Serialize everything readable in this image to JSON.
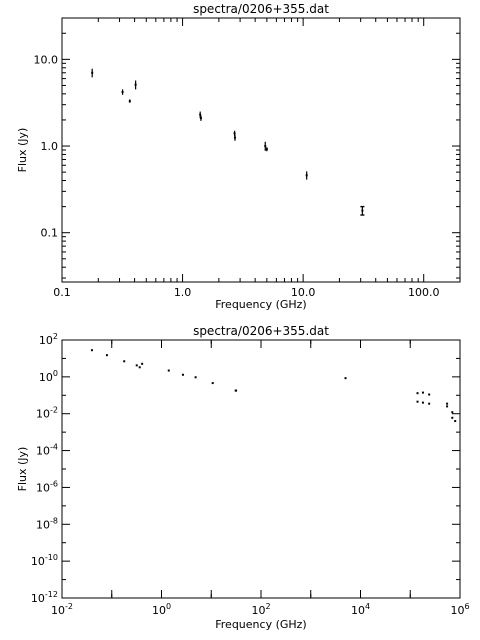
{
  "chart_data": [
    {
      "type": "scatter",
      "title": "spectra/0206+355.dat",
      "xlabel": "Frequency (GHz)",
      "ylabel": "Flux (Jy)",
      "xscale": "log",
      "yscale": "log",
      "xlim": [
        0.1,
        200
      ],
      "ylim": [
        0.027,
        30
      ],
      "x_ticks": [
        "0.1",
        "1.0",
        "10.0",
        "100.0"
      ],
      "y_ticks": [
        "0.1",
        "1.0",
        "10.0"
      ],
      "points": [
        {
          "x": 0.178,
          "y": 7.0,
          "err": 0.8
        },
        {
          "x": 0.318,
          "y": 4.2,
          "err": 0.3
        },
        {
          "x": 0.365,
          "y": 3.3,
          "err": 0.15
        },
        {
          "x": 0.408,
          "y": 5.1,
          "err": 0.6
        },
        {
          "x": 1.4,
          "y": 2.3,
          "err": 0.2
        },
        {
          "x": 1.42,
          "y": 2.1,
          "err": 0.15
        },
        {
          "x": 2.7,
          "y": 1.4,
          "err": 0.1
        },
        {
          "x": 2.72,
          "y": 1.25,
          "err": 0.1
        },
        {
          "x": 4.85,
          "y": 1.0,
          "err": 0.12
        },
        {
          "x": 5.0,
          "y": 0.92,
          "err": 0.05
        },
        {
          "x": 10.7,
          "y": 0.46,
          "err": 0.05
        },
        {
          "x": 31.0,
          "y": 0.18,
          "err": 0.02
        }
      ]
    },
    {
      "type": "scatter",
      "title": "spectra/0206+355.dat",
      "xlabel": "Frequency (GHz)",
      "ylabel": "Flux (Jy)",
      "xscale": "log",
      "yscale": "log",
      "xlim": [
        0.01,
        1000000
      ],
      "ylim": [
        1e-12,
        100
      ],
      "x_ticks": [
        {
          "b": "10",
          "e": "-2"
        },
        {
          "b": "10",
          "e": "0"
        },
        {
          "b": "10",
          "e": "2"
        },
        {
          "b": "10",
          "e": "4"
        },
        {
          "b": "10",
          "e": "6"
        }
      ],
      "y_ticks": [
        {
          "b": "10",
          "e": "-12"
        },
        {
          "b": "10",
          "e": "-10"
        },
        {
          "b": "10",
          "e": "-8"
        },
        {
          "b": "10",
          "e": "-6"
        },
        {
          "b": "10",
          "e": "-4"
        },
        {
          "b": "10",
          "e": "-2"
        },
        {
          "b": "10",
          "e": "0"
        },
        {
          "b": "10",
          "e": "2"
        }
      ],
      "points": [
        {
          "x": 0.04,
          "y": 28
        },
        {
          "x": 0.08,
          "y": 15
        },
        {
          "x": 0.178,
          "y": 7.0
        },
        {
          "x": 0.318,
          "y": 4.2
        },
        {
          "x": 0.365,
          "y": 3.3
        },
        {
          "x": 0.408,
          "y": 5.1
        },
        {
          "x": 1.4,
          "y": 2.2
        },
        {
          "x": 2.7,
          "y": 1.3
        },
        {
          "x": 4.85,
          "y": 0.95
        },
        {
          "x": 10.7,
          "y": 0.46
        },
        {
          "x": 31.0,
          "y": 0.18
        },
        {
          "x": 31.5,
          "y": 0.18
        },
        {
          "x": 5000,
          "y": 0.85
        },
        {
          "x": 140000,
          "y": 0.13
        },
        {
          "x": 140000,
          "y": 0.045
        },
        {
          "x": 180000,
          "y": 0.14
        },
        {
          "x": 180000,
          "y": 0.04
        },
        {
          "x": 240000,
          "y": 0.11
        },
        {
          "x": 240000,
          "y": 0.035
        },
        {
          "x": 550000,
          "y": 0.035
        },
        {
          "x": 550000,
          "y": 0.025
        },
        {
          "x": 700000,
          "y": 0.012
        },
        {
          "x": 700000,
          "y": 0.006
        },
        {
          "x": 800000,
          "y": 0.004
        }
      ]
    }
  ]
}
